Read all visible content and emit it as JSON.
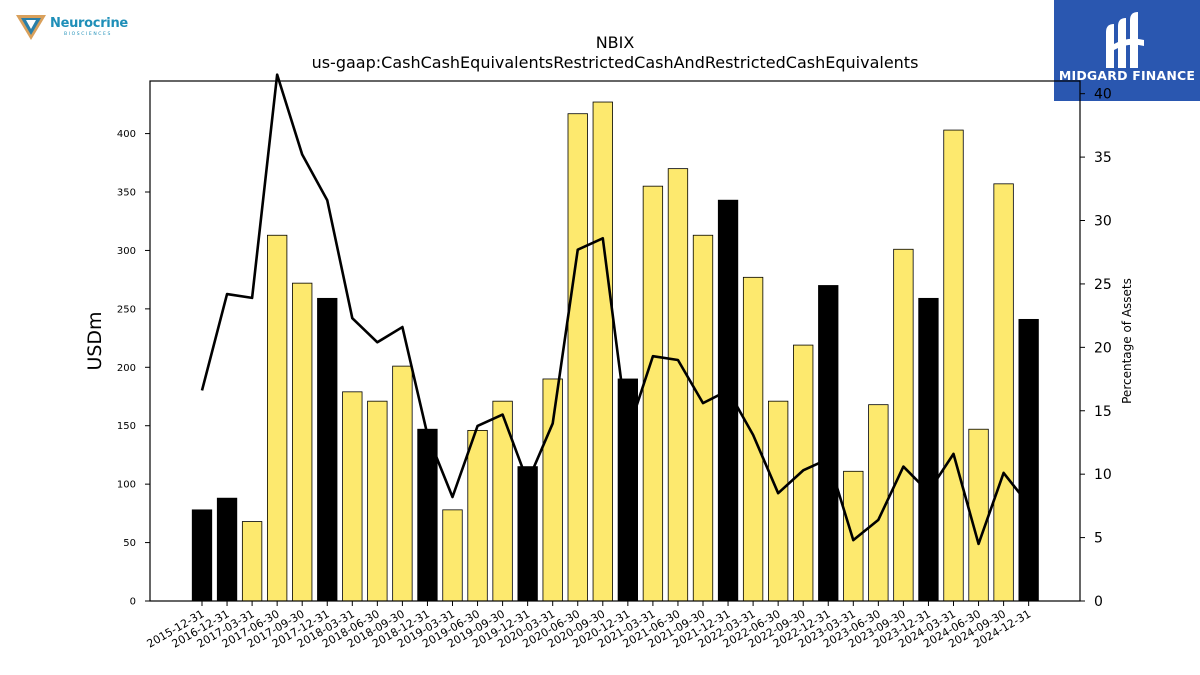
{
  "logos": {
    "left_text": "Neurocrine",
    "left_subtext": "BIOSCIENCES",
    "right_text": "MIDGARD FINANCE"
  },
  "chart_data": {
    "type": "bar",
    "title": "NBIX",
    "subtitle": "us-gaap:CashCashEquivalentsRestrictedCashAndRestrictedCashEquivalents",
    "ylabel": "USDm",
    "y2label": "Percentage of Assets",
    "ylim": [
      0,
      445
    ],
    "y2lim": [
      0,
      41
    ],
    "yticks": [
      0,
      50,
      100,
      150,
      200,
      250,
      300,
      350,
      400
    ],
    "y2ticks": [
      0,
      5,
      10,
      15,
      20,
      25,
      30,
      35,
      40
    ],
    "categories": [
      "2015-12-31",
      "2016-12-31",
      "2017-03-31",
      "2017-06-30",
      "2017-09-30",
      "2017-12-31",
      "2018-03-31",
      "2018-06-30",
      "2018-09-30",
      "2018-12-31",
      "2019-03-31",
      "2019-06-30",
      "2019-09-30",
      "2019-12-31",
      "2020-03-31",
      "2020-06-30",
      "2020-09-30",
      "2020-12-31",
      "2021-03-31",
      "2021-06-30",
      "2021-09-30",
      "2021-12-31",
      "2022-03-31",
      "2022-06-30",
      "2022-09-30",
      "2022-12-31",
      "2023-03-31",
      "2023-06-30",
      "2023-09-30",
      "2023-12-31",
      "2024-03-31",
      "2024-06-30",
      "2024-09-30",
      "2024-12-31"
    ],
    "series": [
      {
        "type": "bar",
        "axis": "left",
        "values": [
          78,
          88,
          68,
          313,
          272,
          259,
          179,
          171,
          201,
          147,
          78,
          146,
          171,
          115,
          190,
          417,
          427,
          190,
          355,
          370,
          313,
          343,
          277,
          171,
          219,
          270,
          111,
          168,
          301,
          259,
          403,
          147,
          357,
          241
        ],
        "colors": [
          "#000000",
          "#000000",
          "#fde96e",
          "#fde96e",
          "#fde96e",
          "#000000",
          "#fde96e",
          "#fde96e",
          "#fde96e",
          "#000000",
          "#fde96e",
          "#fde96e",
          "#fde96e",
          "#000000",
          "#fde96e",
          "#fde96e",
          "#fde96e",
          "#000000",
          "#fde96e",
          "#fde96e",
          "#fde96e",
          "#000000",
          "#fde96e",
          "#fde96e",
          "#fde96e",
          "#000000",
          "#fde96e",
          "#fde96e",
          "#fde96e",
          "#000000",
          "#fde96e",
          "#fde96e",
          "#fde96e",
          "#000000"
        ]
      },
      {
        "type": "line",
        "axis": "right",
        "color": "#000000",
        "values": [
          16.6,
          24.2,
          23.9,
          41.5,
          35.2,
          31.6,
          22.3,
          20.4,
          21.6,
          13.1,
          8.2,
          13.8,
          14.7,
          9.4,
          14.0,
          27.7,
          28.6,
          13.3,
          19.3,
          19.0,
          15.6,
          16.6,
          13.1,
          8.5,
          10.3,
          11.2,
          4.8,
          6.4,
          10.6,
          8.6,
          11.6,
          4.5,
          10.1,
          7.6
        ]
      }
    ]
  }
}
